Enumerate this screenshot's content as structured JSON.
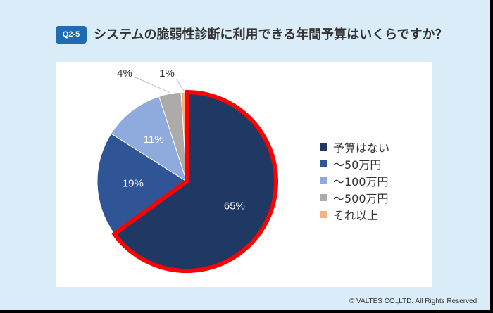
{
  "header": {
    "badge": "Q2-5",
    "title": "システムの脆弱性診断に利用できる年間予算はいくらですか？"
  },
  "footer": "© VALTES CO.,LTD. All Rights Reserved.",
  "chart_data": {
    "type": "pie",
    "title": "システムの脆弱性診断に利用できる年間予算はいくらですか？",
    "categories": [
      "予算はない",
      "～50万円",
      "～100万円",
      "～500万円",
      "それ以上"
    ],
    "values": [
      65,
      19,
      11,
      4,
      1
    ],
    "labels": [
      "65%",
      "19%",
      "11%",
      "4%",
      "1%"
    ],
    "colors": [
      "#1f3864",
      "#2f5597",
      "#8faadc",
      "#aeaaaa",
      "#f4b183"
    ],
    "highlight": {
      "slice": "予算はない",
      "outline_color": "#ff0000"
    },
    "legend_position": "right"
  },
  "legend": {
    "items": [
      {
        "label": "予算はない",
        "color": "#1f3864"
      },
      {
        "label": "～50万円",
        "color": "#2f5597"
      },
      {
        "label": "～100万円",
        "color": "#8faadc"
      },
      {
        "label": "～500万円",
        "color": "#aeaaaa"
      },
      {
        "label": "それ以上",
        "color": "#f4b183"
      }
    ]
  }
}
